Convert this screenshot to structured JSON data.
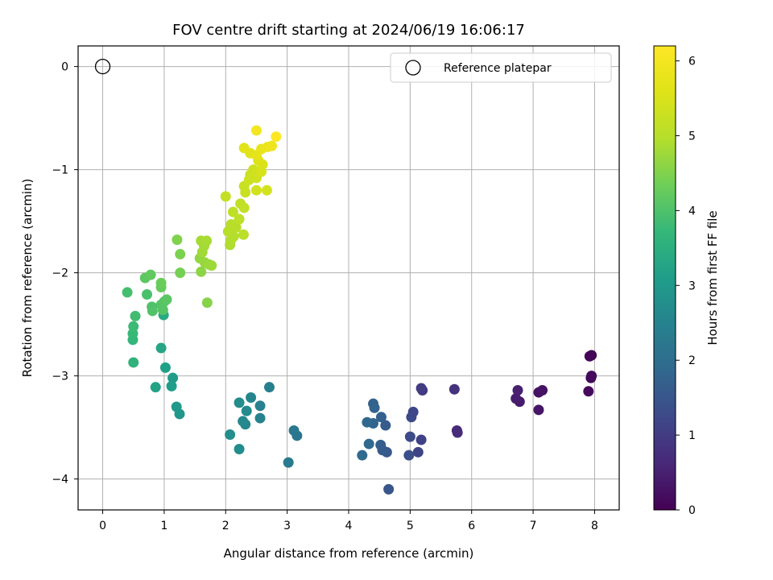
{
  "chart_data": {
    "type": "scatter",
    "title": "FOV centre drift starting at 2024/06/19 16:06:17",
    "xlabel": "Angular distance from reference (arcmin)",
    "ylabel": "Rotation from reference (arcmin)",
    "xlim": [
      -0.4,
      8.4
    ],
    "ylim": [
      -4.3,
      0.2
    ],
    "xticks": [
      0,
      1,
      2,
      3,
      4,
      5,
      6,
      7,
      8
    ],
    "yticks": [
      0,
      -1,
      -2,
      -3,
      -4
    ],
    "grid": true,
    "legend": {
      "position": "top-right",
      "entries": [
        "Reference platepar"
      ]
    },
    "reference_point": {
      "x": 0,
      "y": 0,
      "marker": "open-circle"
    },
    "colorbar": {
      "label": "Hours from first FF file",
      "range": [
        0,
        6.2
      ],
      "ticks": [
        0,
        1,
        2,
        3,
        4,
        5,
        6
      ],
      "colormap": "viridis"
    },
    "points": [
      {
        "x": 7.95,
        "y": -2.8,
        "t": 0.0
      },
      {
        "x": 7.92,
        "y": -2.81,
        "t": 0.05
      },
      {
        "x": 7.95,
        "y": -3.0,
        "t": 0.1
      },
      {
        "x": 7.94,
        "y": -3.02,
        "t": 0.12
      },
      {
        "x": 7.9,
        "y": -3.15,
        "t": 0.15
      },
      {
        "x": 7.15,
        "y": -3.14,
        "t": 0.25
      },
      {
        "x": 7.09,
        "y": -3.16,
        "t": 0.28
      },
      {
        "x": 7.09,
        "y": -3.33,
        "t": 0.32
      },
      {
        "x": 6.78,
        "y": -3.25,
        "t": 0.4
      },
      {
        "x": 6.72,
        "y": -3.22,
        "t": 0.45
      },
      {
        "x": 6.75,
        "y": -3.14,
        "t": 0.5
      },
      {
        "x": 5.76,
        "y": -3.53,
        "t": 0.65
      },
      {
        "x": 5.77,
        "y": -3.55,
        "t": 0.7
      },
      {
        "x": 5.72,
        "y": -3.13,
        "t": 0.8
      },
      {
        "x": 5.2,
        "y": -3.14,
        "t": 0.95
      },
      {
        "x": 5.18,
        "y": -3.12,
        "t": 1.0
      },
      {
        "x": 5.18,
        "y": -3.62,
        "t": 1.1
      },
      {
        "x": 5.13,
        "y": -3.74,
        "t": 1.15
      },
      {
        "x": 5.05,
        "y": -3.35,
        "t": 1.2
      },
      {
        "x": 5.02,
        "y": -3.4,
        "t": 1.25
      },
      {
        "x": 5.0,
        "y": -3.59,
        "t": 1.3
      },
      {
        "x": 4.98,
        "y": -3.77,
        "t": 1.35
      },
      {
        "x": 4.65,
        "y": -4.1,
        "t": 1.5
      },
      {
        "x": 4.62,
        "y": -3.74,
        "t": 1.55
      },
      {
        "x": 4.6,
        "y": -3.48,
        "t": 1.6
      },
      {
        "x": 4.55,
        "y": -3.72,
        "t": 1.62
      },
      {
        "x": 4.52,
        "y": -3.67,
        "t": 1.65
      },
      {
        "x": 4.53,
        "y": -3.4,
        "t": 1.7
      },
      {
        "x": 4.4,
        "y": -3.27,
        "t": 1.75
      },
      {
        "x": 4.42,
        "y": -3.31,
        "t": 1.78
      },
      {
        "x": 4.4,
        "y": -3.46,
        "t": 1.8
      },
      {
        "x": 4.3,
        "y": -3.45,
        "t": 1.85
      },
      {
        "x": 4.33,
        "y": -3.66,
        "t": 1.88
      },
      {
        "x": 4.22,
        "y": -3.77,
        "t": 1.92
      },
      {
        "x": 3.16,
        "y": -3.58,
        "t": 2.2
      },
      {
        "x": 3.11,
        "y": -3.53,
        "t": 2.25
      },
      {
        "x": 3.02,
        "y": -3.84,
        "t": 2.3
      },
      {
        "x": 2.71,
        "y": -3.11,
        "t": 2.4
      },
      {
        "x": 2.56,
        "y": -3.29,
        "t": 2.45
      },
      {
        "x": 2.56,
        "y": -3.41,
        "t": 2.5
      },
      {
        "x": 2.41,
        "y": -3.21,
        "t": 2.55
      },
      {
        "x": 2.32,
        "y": -3.47,
        "t": 2.6
      },
      {
        "x": 2.28,
        "y": -3.44,
        "t": 2.62
      },
      {
        "x": 2.34,
        "y": -3.34,
        "t": 2.65
      },
      {
        "x": 2.22,
        "y": -3.26,
        "t": 2.7
      },
      {
        "x": 2.22,
        "y": -3.71,
        "t": 2.72
      },
      {
        "x": 2.07,
        "y": -3.57,
        "t": 2.75
      },
      {
        "x": 1.25,
        "y": -3.37,
        "t": 2.95
      },
      {
        "x": 1.2,
        "y": -3.3,
        "t": 3.0
      },
      {
        "x": 1.14,
        "y": -3.02,
        "t": 3.05
      },
      {
        "x": 1.12,
        "y": -3.1,
        "t": 3.1
      },
      {
        "x": 1.02,
        "y": -2.92,
        "t": 3.15
      },
      {
        "x": 0.86,
        "y": -3.11,
        "t": 3.2
      },
      {
        "x": 0.95,
        "y": -2.73,
        "t": 3.3
      },
      {
        "x": 0.99,
        "y": -2.41,
        "t": 3.4
      },
      {
        "x": 0.5,
        "y": -2.87,
        "t": 3.6
      },
      {
        "x": 0.49,
        "y": -2.65,
        "t": 3.7
      },
      {
        "x": 0.49,
        "y": -2.59,
        "t": 3.75
      },
      {
        "x": 0.5,
        "y": -2.52,
        "t": 3.8
      },
      {
        "x": 0.53,
        "y": -2.42,
        "t": 3.85
      },
      {
        "x": 0.4,
        "y": -2.19,
        "t": 3.9
      },
      {
        "x": 0.72,
        "y": -2.21,
        "t": 3.95
      },
      {
        "x": 0.8,
        "y": -2.33,
        "t": 4.0
      },
      {
        "x": 0.81,
        "y": -2.37,
        "t": 4.02
      },
      {
        "x": 0.95,
        "y": -2.31,
        "t": 4.05
      },
      {
        "x": 0.98,
        "y": -2.36,
        "t": 4.08
      },
      {
        "x": 1.0,
        "y": -2.28,
        "t": 4.1
      },
      {
        "x": 1.04,
        "y": -2.26,
        "t": 4.12
      },
      {
        "x": 0.69,
        "y": -2.05,
        "t": 4.15
      },
      {
        "x": 0.78,
        "y": -2.02,
        "t": 4.2
      },
      {
        "x": 0.95,
        "y": -2.14,
        "t": 4.25
      },
      {
        "x": 0.95,
        "y": -2.1,
        "t": 4.3
      },
      {
        "x": 1.26,
        "y": -2.0,
        "t": 4.4
      },
      {
        "x": 1.26,
        "y": -1.82,
        "t": 4.45
      },
      {
        "x": 1.21,
        "y": -1.68,
        "t": 4.5
      },
      {
        "x": 1.7,
        "y": -2.29,
        "t": 4.55
      },
      {
        "x": 1.6,
        "y": -1.99,
        "t": 4.6
      },
      {
        "x": 1.58,
        "y": -1.86,
        "t": 4.65
      },
      {
        "x": 1.66,
        "y": -1.9,
        "t": 4.7
      },
      {
        "x": 1.73,
        "y": -1.92,
        "t": 4.72
      },
      {
        "x": 1.77,
        "y": -1.93,
        "t": 4.75
      },
      {
        "x": 1.62,
        "y": -1.8,
        "t": 4.78
      },
      {
        "x": 1.65,
        "y": -1.74,
        "t": 4.8
      },
      {
        "x": 1.6,
        "y": -1.69,
        "t": 4.82
      },
      {
        "x": 1.69,
        "y": -1.69,
        "t": 4.85
      },
      {
        "x": 2.07,
        "y": -1.73,
        "t": 4.9
      },
      {
        "x": 2.08,
        "y": -1.69,
        "t": 4.92
      },
      {
        "x": 2.13,
        "y": -1.65,
        "t": 4.95
      },
      {
        "x": 2.04,
        "y": -1.6,
        "t": 4.98
      },
      {
        "x": 2.09,
        "y": -1.53,
        "t": 5.0
      },
      {
        "x": 2.17,
        "y": -1.56,
        "t": 5.02
      },
      {
        "x": 2.29,
        "y": -1.63,
        "t": 5.05
      },
      {
        "x": 2.22,
        "y": -1.48,
        "t": 5.08
      },
      {
        "x": 2.12,
        "y": -1.41,
        "t": 5.1
      },
      {
        "x": 2.24,
        "y": -1.33,
        "t": 5.12
      },
      {
        "x": 2.3,
        "y": -1.37,
        "t": 5.15
      },
      {
        "x": 2.0,
        "y": -1.26,
        "t": 5.18
      },
      {
        "x": 2.3,
        "y": -1.16,
        "t": 5.22
      },
      {
        "x": 2.32,
        "y": -1.22,
        "t": 5.25
      },
      {
        "x": 2.38,
        "y": -1.1,
        "t": 5.28
      },
      {
        "x": 2.4,
        "y": -1.05,
        "t": 5.3
      },
      {
        "x": 2.45,
        "y": -1.0,
        "t": 5.32
      },
      {
        "x": 2.5,
        "y": -1.08,
        "t": 5.35
      },
      {
        "x": 2.5,
        "y": -1.2,
        "t": 5.38
      },
      {
        "x": 2.67,
        "y": -1.2,
        "t": 5.4
      },
      {
        "x": 2.58,
        "y": -1.02,
        "t": 5.45
      },
      {
        "x": 2.6,
        "y": -0.95,
        "t": 5.5
      },
      {
        "x": 2.53,
        "y": -0.91,
        "t": 5.55
      },
      {
        "x": 2.4,
        "y": -0.84,
        "t": 5.6
      },
      {
        "x": 2.3,
        "y": -0.79,
        "t": 5.65
      },
      {
        "x": 2.5,
        "y": -0.86,
        "t": 5.7
      },
      {
        "x": 2.58,
        "y": -0.8,
        "t": 5.75
      },
      {
        "x": 2.68,
        "y": -0.78,
        "t": 5.85
      },
      {
        "x": 2.75,
        "y": -0.77,
        "t": 5.9
      },
      {
        "x": 2.5,
        "y": -0.62,
        "t": 6.0
      },
      {
        "x": 2.82,
        "y": -0.68,
        "t": 6.2
      }
    ]
  }
}
